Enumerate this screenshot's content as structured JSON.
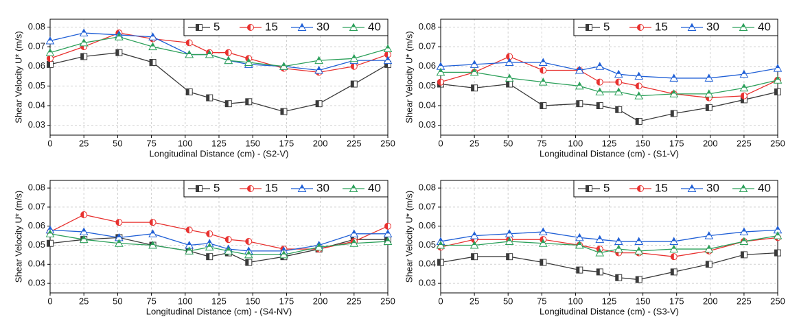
{
  "chart_data": [
    {
      "type": "line",
      "x_label": "Longitudinal Distance (cm) - (S2-V)",
      "y_label": "Shear Velocity U* (m/s)",
      "x": [
        0,
        25,
        51,
        76,
        103,
        118,
        132,
        147,
        173,
        199,
        225,
        250
      ],
      "xlim": [
        0,
        250
      ],
      "xticks": [
        0,
        25,
        50,
        75,
        100,
        125,
        150,
        175,
        200,
        225,
        250
      ],
      "ylim": [
        0.025,
        0.084
      ],
      "yticks": [
        0.03,
        0.04,
        0.05,
        0.06,
        0.07,
        0.08
      ],
      "grid": true,
      "legend": "top-right",
      "series": [
        {
          "name": "5",
          "color": "#3a3a3a",
          "marker": "square",
          "values": [
            0.061,
            0.065,
            0.067,
            0.062,
            0.047,
            0.044,
            0.041,
            0.042,
            0.037,
            0.041,
            0.051,
            0.061
          ]
        },
        {
          "name": "15",
          "color": "#e8312f",
          "marker": "circle",
          "values": [
            0.064,
            0.07,
            0.077,
            0.074,
            0.072,
            0.067,
            0.067,
            0.064,
            0.059,
            0.057,
            0.06,
            0.066
          ]
        },
        {
          "name": "30",
          "color": "#1f5fd6",
          "marker": "triangle",
          "values": [
            0.073,
            0.077,
            0.076,
            0.075,
            0.066,
            0.066,
            0.063,
            0.061,
            0.06,
            0.058,
            0.063,
            0.063
          ]
        },
        {
          "name": "40",
          "color": "#2ca05a",
          "marker": "triangle",
          "values": [
            0.067,
            0.072,
            0.075,
            0.07,
            0.066,
            0.066,
            0.063,
            0.062,
            0.06,
            0.063,
            0.064,
            0.069
          ]
        }
      ]
    },
    {
      "type": "line",
      "x_label": "Longitudinal Distance (cm) - (S1-V)",
      "y_label": "Shear Velocity U* (m/s)",
      "x": [
        0,
        25,
        51,
        76,
        103,
        118,
        132,
        147,
        173,
        199,
        225,
        250
      ],
      "xlim": [
        0,
        250
      ],
      "xticks": [
        0,
        25,
        50,
        75,
        100,
        125,
        150,
        175,
        200,
        225,
        250
      ],
      "ylim": [
        0.025,
        0.084
      ],
      "yticks": [
        0.03,
        0.04,
        0.05,
        0.06,
        0.07,
        0.08
      ],
      "grid": true,
      "legend": "top-right",
      "series": [
        {
          "name": "5",
          "color": "#3a3a3a",
          "marker": "square",
          "values": [
            0.051,
            0.049,
            0.051,
            0.04,
            0.041,
            0.04,
            0.038,
            0.032,
            0.036,
            0.039,
            0.043,
            0.047
          ]
        },
        {
          "name": "15",
          "color": "#e8312f",
          "marker": "circle",
          "values": [
            0.052,
            0.057,
            0.065,
            0.058,
            0.058,
            0.052,
            0.052,
            0.05,
            0.046,
            0.044,
            0.045,
            0.053
          ]
        },
        {
          "name": "30",
          "color": "#1f5fd6",
          "marker": "triangle",
          "values": [
            0.06,
            0.061,
            0.062,
            0.062,
            0.058,
            0.06,
            0.056,
            0.055,
            0.054,
            0.054,
            0.056,
            0.059
          ]
        },
        {
          "name": "40",
          "color": "#2ca05a",
          "marker": "triangle",
          "values": [
            0.057,
            0.057,
            0.054,
            0.052,
            0.05,
            0.047,
            0.047,
            0.045,
            0.046,
            0.046,
            0.049,
            0.053
          ]
        }
      ]
    },
    {
      "type": "line",
      "x_label": "Longitudinal Distance (cm) - (S4-NV)",
      "y_label": "Shear Velocity U* (m/s)",
      "x": [
        0,
        25,
        51,
        76,
        103,
        118,
        132,
        147,
        173,
        199,
        225,
        250
      ],
      "xlim": [
        0,
        250
      ],
      "xticks": [
        0,
        25,
        50,
        75,
        100,
        125,
        150,
        175,
        200,
        225,
        250
      ],
      "ylim": [
        0.025,
        0.084
      ],
      "yticks": [
        0.03,
        0.04,
        0.05,
        0.06,
        0.07,
        0.08
      ],
      "grid": true,
      "legend": "top-right",
      "series": [
        {
          "name": "5",
          "color": "#3a3a3a",
          "marker": "square",
          "values": [
            0.051,
            0.053,
            0.054,
            0.05,
            0.047,
            0.044,
            0.046,
            0.041,
            0.044,
            0.048,
            0.053,
            0.053
          ]
        },
        {
          "name": "15",
          "color": "#e8312f",
          "marker": "circle",
          "values": [
            0.057,
            0.066,
            0.062,
            0.062,
            0.058,
            0.056,
            0.053,
            0.052,
            0.048,
            0.048,
            0.052,
            0.06
          ]
        },
        {
          "name": "30",
          "color": "#1f5fd6",
          "marker": "triangle",
          "values": [
            0.058,
            0.057,
            0.054,
            0.056,
            0.05,
            0.051,
            0.048,
            0.047,
            0.047,
            0.05,
            0.056,
            0.056
          ]
        },
        {
          "name": "40",
          "color": "#2ca05a",
          "marker": "triangle",
          "values": [
            0.056,
            0.053,
            0.051,
            0.05,
            0.047,
            0.049,
            0.047,
            0.045,
            0.045,
            0.049,
            0.051,
            0.052
          ]
        }
      ]
    },
    {
      "type": "line",
      "x_label": "Longitudinal Distance (cm) - (S3-V)",
      "y_label": "Shear Velocity U* (m/s)",
      "x": [
        0,
        25,
        51,
        76,
        103,
        118,
        132,
        147,
        173,
        199,
        225,
        250
      ],
      "xlim": [
        0,
        250
      ],
      "xticks": [
        0,
        25,
        50,
        75,
        100,
        125,
        150,
        175,
        200,
        225,
        250
      ],
      "ylim": [
        0.025,
        0.084
      ],
      "yticks": [
        0.03,
        0.04,
        0.05,
        0.06,
        0.07,
        0.08
      ],
      "grid": true,
      "legend": "top-right",
      "series": [
        {
          "name": "5",
          "color": "#3a3a3a",
          "marker": "square",
          "values": [
            0.041,
            0.044,
            0.044,
            0.041,
            0.037,
            0.036,
            0.033,
            0.032,
            0.036,
            0.04,
            0.045,
            0.046
          ]
        },
        {
          "name": "15",
          "color": "#e8312f",
          "marker": "circle",
          "values": [
            0.049,
            0.053,
            0.053,
            0.053,
            0.05,
            0.048,
            0.046,
            0.046,
            0.044,
            0.047,
            0.052,
            0.054
          ]
        },
        {
          "name": "30",
          "color": "#1f5fd6",
          "marker": "triangle",
          "values": [
            0.052,
            0.055,
            0.056,
            0.057,
            0.054,
            0.053,
            0.052,
            0.052,
            0.052,
            0.055,
            0.057,
            0.058
          ]
        },
        {
          "name": "40",
          "color": "#2ca05a",
          "marker": "triangle",
          "values": [
            0.05,
            0.05,
            0.052,
            0.051,
            0.05,
            0.046,
            0.048,
            0.047,
            0.048,
            0.048,
            0.052,
            0.055
          ]
        }
      ]
    }
  ]
}
